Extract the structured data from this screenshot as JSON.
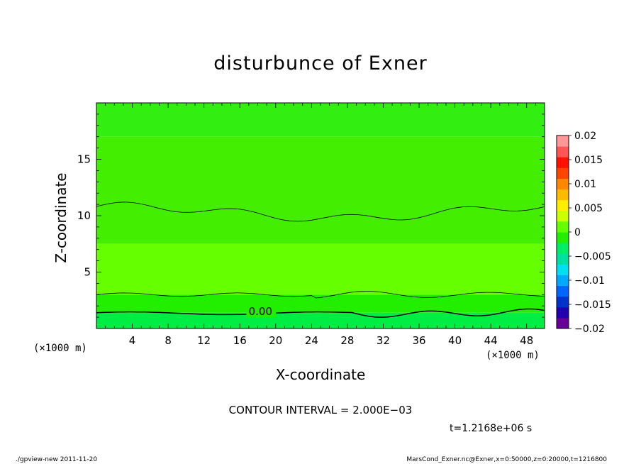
{
  "chart_data": {
    "type": "heatmap",
    "title": "disturbunce of Exner",
    "xlabel": "X-coordinate",
    "ylabel": "Z-coordinate",
    "x_unit_left": "(×1000 m)",
    "x_unit_right": "(×1000 m)",
    "xlim": [
      0,
      50
    ],
    "ylim": [
      0,
      20
    ],
    "x_ticks": [
      4,
      8,
      12,
      16,
      20,
      24,
      28,
      32,
      36,
      40,
      44,
      48
    ],
    "y_ticks": [
      5,
      10,
      15
    ],
    "colorbar": {
      "range": [
        -0.02,
        0.02
      ],
      "tick_labels": [
        "0.02",
        "0.015",
        "0.01",
        "0.005",
        "0",
        "−0.005",
        "−0.01",
        "−0.015",
        "−0.02"
      ],
      "tick_values": [
        0.02,
        0.015,
        0.01,
        0.005,
        0,
        -0.005,
        -0.01,
        -0.015,
        -0.02
      ],
      "colors_bottom_to_top": [
        "#660099",
        "#2200b0",
        "#0033cc",
        "#0066ff",
        "#00aaff",
        "#00e0f0",
        "#00e0a0",
        "#00ee66",
        "#22ee00",
        "#66ff00",
        "#ccff00",
        "#ffee00",
        "#ffbb00",
        "#ff8800",
        "#ff4400",
        "#ff1100",
        "#ff5555",
        "#ff9999"
      ]
    },
    "contour_labels": [
      {
        "x": 18.3,
        "z": 1.5,
        "label": "0.00"
      }
    ],
    "fill_bands": [
      {
        "z_range": [
          0,
          1.4
        ],
        "color": "#00ee44"
      },
      {
        "z_range": [
          1.4,
          3.0
        ],
        "color": "#22ee00"
      },
      {
        "z_range": [
          3.0,
          7.5
        ],
        "color": "#66ff00"
      },
      {
        "z_range": [
          7.5,
          17.0
        ],
        "color": "#44ee00"
      },
      {
        "z_range": [
          17.0,
          20.0
        ],
        "color": "#33ee11"
      }
    ]
  },
  "contour_interval": "CONTOUR INTERVAL = 2.000E−03",
  "time_label": "t=1.2168e+06 s",
  "footer_left": "./gpview-new   2011-11-20",
  "footer_right": "MarsCond_Exner.nc@Exner,x=0:50000,z=0:20000,t=1216800"
}
